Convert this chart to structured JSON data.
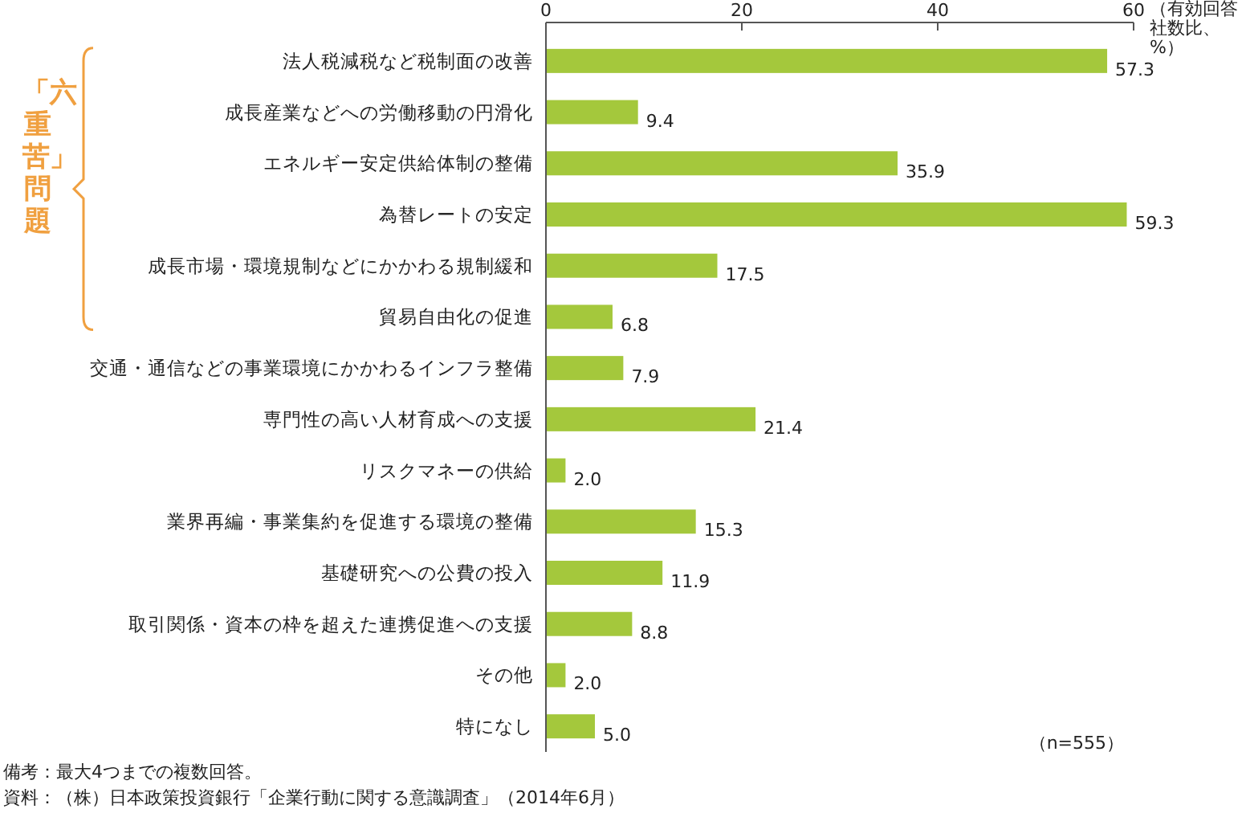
{
  "chart_data": {
    "type": "bar",
    "orientation": "horizontal",
    "color": "#a4c83c",
    "categories": [
      "法人税減税など税制面の改善",
      "成長産業などへの労働移動の円滑化",
      "エネルギー安定供給体制の整備",
      "為替レートの安定",
      "成長市場・環境規制などにかかわる規制緩和",
      "貿易自由化の促進",
      "交通・通信などの事業環境にかかわるインフラ整備",
      "専門性の高い人材育成への支援",
      "リスクマネーの供給",
      "業界再編・事業集約を促進する環境の整備",
      "基礎研究への公費の投入",
      "取引関係・資本の枠を超えた連携促進への支援",
      "その他",
      "特になし"
    ],
    "values": [
      57.3,
      9.4,
      35.9,
      59.3,
      17.5,
      6.8,
      7.9,
      21.4,
      2.0,
      15.3,
      11.9,
      8.8,
      2.0,
      5.0
    ],
    "value_labels": [
      "57.3",
      "9.4",
      "35.9",
      "59.3",
      "17.5",
      "6.8",
      "7.9",
      "21.4",
      "2.0",
      "15.3",
      "11.9",
      "8.8",
      "2.0",
      "5.0"
    ],
    "xlim": [
      0,
      60
    ],
    "xticks": [
      0,
      20,
      40,
      60
    ],
    "xlabel": "（有効回答社数比、%）",
    "annotations": [
      "「六重苦」問題",
      "（n=555）",
      "備考：最大4つまでの複数回答。",
      "資料：（株）日本政策投資銀行「企業行動に関する意識調査」（2014年6月）"
    ]
  }
}
